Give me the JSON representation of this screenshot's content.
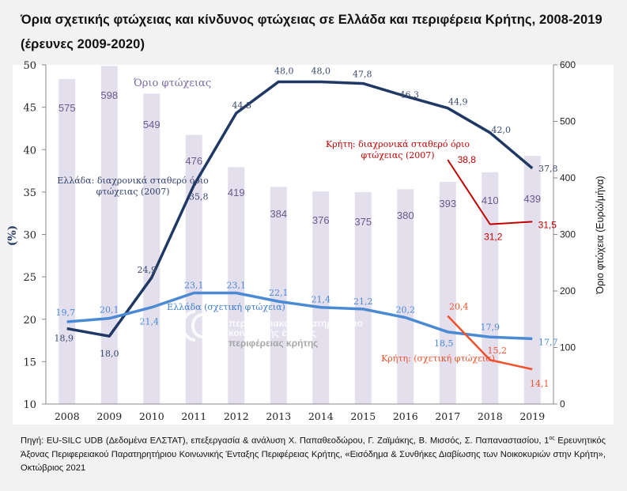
{
  "title": "Όρια σχετικής φτώχειας και κίνδυνος φτώχειας σε Ελλάδα και περιφέρεια Κρήτης, 2008-2019 (έρευνες 2009-2020)",
  "source": {
    "prefix": "Πηγή: EU-SILC UDB (Δεδομένα ΕΛΣΤΑΤ), επεξεργασία & ανάλυση Χ. Παπαθεοδώρου, Γ. Ζαϊμάκης, Β. Μισσός, Σ. Παπαναστασίου, 1",
    "sup": "ος",
    "suffix": " Ερευνητικός Άξονας Περιφερειακού Παρατηρητήριου Κοινωνικής Ένταξης Περιφέρειας Κρήτης, «Εισόδημα & Συνθήκες Διαβίωσης των Νοικοκυριών στην Κρήτη», Οκτώβριος 2021"
  },
  "watermark": {
    "line1": "περιφερειακό παρατηρητήριο",
    "line2": "κοινωνικής ένταξης",
    "line3": "περιφέρειας κρήτης"
  },
  "chart_data": {
    "type": "bar+line",
    "title": "Όρια σχετικής φτώχειας και κίνδυνος φτώχειας σε Ελλάδα και περιφέρεια Κρήτης, 2008-2019 (έρευνες 2009-2020)",
    "categories": [
      "2008",
      "2009",
      "2010",
      "2011",
      "2012",
      "2013",
      "2014",
      "2015",
      "2016",
      "2017",
      "2018",
      "2019"
    ],
    "ylabel_left": "(%)",
    "ylabel_right": "Όριο φτώχεια (Ευρώ/μήνα)",
    "ylim_left": [
      10,
      50
    ],
    "yticks_left": [
      10,
      15,
      20,
      25,
      30,
      35,
      40,
      45,
      50
    ],
    "ylim_right": [
      0,
      600
    ],
    "yticks_right": [
      0,
      100,
      200,
      300,
      400,
      500,
      600
    ],
    "grid": false,
    "bars": {
      "name": "Όριο φτώχειας",
      "axis": "right",
      "color": "#e4dfed",
      "label_color": "#6a5a8e",
      "values": [
        575,
        598,
        549,
        476,
        419,
        384,
        376,
        375,
        380,
        393,
        410,
        439
      ]
    },
    "series": [
      {
        "name": "Ελλάδα: διαχρονικά σταθερό όριο φτώχειας (2007)",
        "axis": "left",
        "color": "#1f3864",
        "values": [
          18.9,
          18.0,
          24.9,
          35.8,
          44.3,
          48.0,
          48.0,
          47.8,
          46.3,
          44.9,
          42.0,
          37.8
        ],
        "labels": [
          "18,9",
          "18,0",
          "24,9",
          "35,8",
          "44,3",
          "48,0",
          "48,0",
          "47,8",
          "46,3",
          "44,9",
          "42,0",
          "37,8"
        ]
      },
      {
        "name": "Ελλάδα (σχετική φτώχεια)",
        "axis": "left",
        "color": "#4a8ad4",
        "values": [
          19.7,
          20.1,
          21.4,
          23.1,
          23.1,
          22.1,
          21.4,
          21.2,
          20.2,
          18.5,
          17.9,
          17.7
        ],
        "labels": [
          "19,7",
          "20,1",
          "21,4",
          "23,1",
          "23,1",
          "22,1",
          "21,4",
          "21,2",
          "20,2",
          "18,5",
          "17,9",
          "17,7"
        ]
      },
      {
        "name": "Κρήτη: διαχρονικά σταθερό όριο φτώχειας (2007)",
        "axis": "left",
        "color": "#c00000",
        "values": [
          null,
          null,
          null,
          null,
          null,
          null,
          null,
          null,
          null,
          38.8,
          31.2,
          31.5
        ],
        "labels": [
          null,
          null,
          null,
          null,
          null,
          null,
          null,
          null,
          null,
          "38,8",
          "31,2",
          "31,5"
        ]
      },
      {
        "name": "Κρήτη: (σχετική φτώχεια)",
        "axis": "left",
        "color": "#f0502a",
        "values": [
          null,
          null,
          null,
          null,
          null,
          null,
          null,
          null,
          null,
          20.4,
          15.2,
          14.1
        ],
        "labels": [
          null,
          null,
          null,
          null,
          null,
          null,
          null,
          null,
          null,
          "20,4",
          "15,2",
          "14,1"
        ]
      }
    ],
    "annotations": {
      "bars": "Όριο φτώχειας",
      "greece_fixed_line1": "Ελλάδα: διαχρονικά σταθερό όριο",
      "greece_fixed_line2": "φτώχειας (2007)",
      "greece_relative": "Ελλάδα (σχετική φτώχεια)",
      "crete_fixed_line1": "Κρήτη: διαχρονικά σταθερό όριο",
      "crete_fixed_line2": "φτώχειας (2007)",
      "crete_relative": "Κρήτη: (σχετική φτώχεια)"
    }
  }
}
